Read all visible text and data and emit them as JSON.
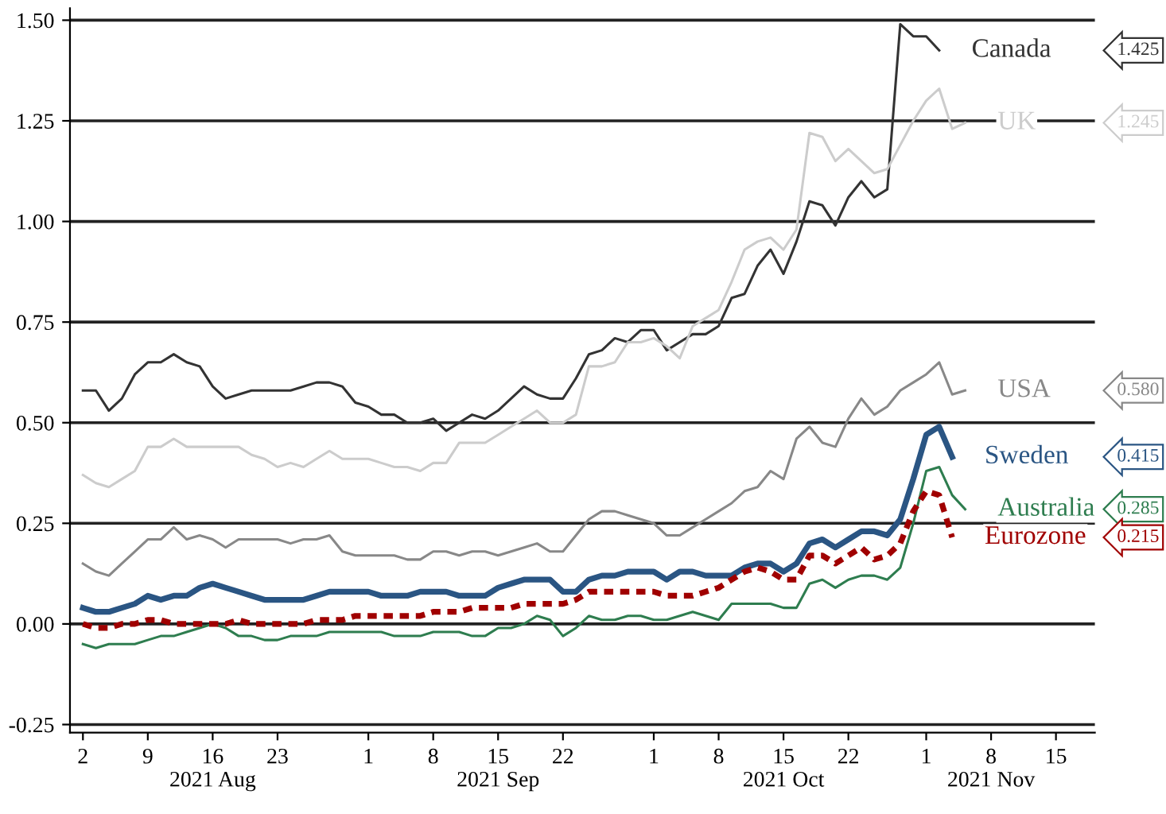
{
  "chart_data": {
    "type": "line",
    "categories": [
      "2",
      null,
      null,
      null,
      null,
      "9",
      null,
      null,
      null,
      null,
      "16\n2021 Aug",
      null,
      null,
      null,
      null,
      "23",
      null,
      null,
      null,
      null,
      null,
      null,
      "1",
      null,
      null,
      null,
      null,
      "8",
      null,
      null,
      null,
      null,
      "15\n2021 Sep",
      null,
      null,
      null,
      null,
      "22",
      null,
      null,
      null,
      null,
      null,
      null,
      "1",
      null,
      null,
      null,
      null,
      "8",
      null,
      null,
      null,
      null,
      "15\n2021 Oct",
      null,
      null,
      null,
      null,
      "22",
      null,
      null,
      null,
      null,
      null,
      "1",
      null,
      null,
      null,
      null,
      "8\n2021 Nov",
      null,
      null,
      null,
      null,
      "15",
      null,
      null,
      null
    ],
    "series": [
      {
        "name": "Canada",
        "color": "#333333",
        "line_style": "solid",
        "values": [
          0.58,
          0.58,
          0.53,
          0.56,
          0.62,
          0.65,
          0.65,
          0.67,
          0.65,
          0.64,
          0.59,
          0.56,
          0.57,
          0.58,
          0.58,
          0.58,
          0.58,
          0.59,
          0.6,
          0.6,
          0.59,
          0.55,
          0.54,
          0.52,
          0.52,
          0.5,
          0.5,
          0.51,
          0.48,
          0.5,
          0.52,
          0.51,
          0.53,
          0.56,
          0.59,
          0.57,
          0.56,
          0.56,
          0.61,
          0.67,
          0.68,
          0.71,
          0.7,
          0.73,
          0.73,
          0.68,
          0.7,
          0.72,
          0.72,
          0.74,
          0.81,
          0.82,
          0.89,
          0.93,
          0.87,
          0.95,
          1.05,
          1.04,
          0.99,
          1.06,
          1.1,
          1.06,
          1.08,
          1.49,
          1.46,
          1.46,
          1.425,
          null,
          null,
          null,
          null,
          null,
          null,
          null,
          null,
          null,
          null,
          null,
          null
        ]
      },
      {
        "name": "UK",
        "color": "#cccccc",
        "line_style": "solid",
        "values": [
          0.37,
          0.35,
          0.34,
          0.36,
          0.38,
          0.44,
          0.44,
          0.46,
          0.44,
          0.44,
          0.44,
          0.44,
          0.44,
          0.42,
          0.41,
          0.39,
          0.4,
          0.39,
          0.41,
          0.43,
          0.41,
          0.41,
          0.41,
          0.4,
          0.39,
          0.39,
          0.38,
          0.4,
          0.4,
          0.45,
          0.45,
          0.45,
          0.47,
          0.49,
          0.51,
          0.53,
          0.5,
          0.5,
          0.52,
          0.64,
          0.64,
          0.65,
          0.7,
          0.7,
          0.71,
          0.69,
          0.66,
          0.74,
          0.76,
          0.78,
          0.85,
          0.93,
          0.95,
          0.96,
          0.93,
          0.98,
          1.22,
          1.21,
          1.15,
          1.18,
          1.15,
          1.12,
          1.13,
          1.19,
          1.25,
          1.3,
          1.33,
          1.23,
          1.245,
          null,
          null,
          null,
          null,
          null,
          null,
          null,
          null,
          null,
          null
        ]
      },
      {
        "name": "USA",
        "color": "#888888",
        "line_style": "solid",
        "values": [
          0.15,
          0.13,
          0.12,
          0.15,
          0.18,
          0.21,
          0.21,
          0.24,
          0.21,
          0.22,
          0.21,
          0.19,
          0.21,
          0.21,
          0.21,
          0.21,
          0.2,
          0.21,
          0.21,
          0.22,
          0.18,
          0.17,
          0.17,
          0.17,
          0.17,
          0.16,
          0.16,
          0.18,
          0.18,
          0.17,
          0.18,
          0.18,
          0.17,
          0.18,
          0.19,
          0.2,
          0.18,
          0.18,
          0.22,
          0.26,
          0.28,
          0.28,
          0.27,
          0.26,
          0.25,
          0.22,
          0.22,
          0.24,
          0.26,
          0.28,
          0.3,
          0.33,
          0.34,
          0.38,
          0.36,
          0.46,
          0.49,
          0.45,
          0.44,
          0.51,
          0.56,
          0.52,
          0.54,
          0.58,
          0.6,
          0.62,
          0.65,
          0.57,
          0.58,
          null,
          null,
          null,
          null,
          null,
          null,
          null,
          null,
          null,
          null
        ]
      },
      {
        "name": "Sweden",
        "color": "#2a5583",
        "line_style": "solid",
        "values": [
          0.04,
          0.03,
          0.03,
          0.04,
          0.05,
          0.07,
          0.06,
          0.07,
          0.07,
          0.09,
          0.1,
          0.09,
          0.08,
          0.07,
          0.06,
          0.06,
          0.06,
          0.06,
          0.07,
          0.08,
          0.08,
          0.08,
          0.08,
          0.07,
          0.07,
          0.07,
          0.08,
          0.08,
          0.08,
          0.07,
          0.07,
          0.07,
          0.09,
          0.1,
          0.11,
          0.11,
          0.11,
          0.08,
          0.08,
          0.11,
          0.12,
          0.12,
          0.13,
          0.13,
          0.13,
          0.11,
          0.13,
          0.13,
          0.12,
          0.12,
          0.12,
          0.14,
          0.15,
          0.15,
          0.13,
          0.15,
          0.2,
          0.21,
          0.19,
          0.21,
          0.23,
          0.23,
          0.22,
          0.26,
          0.36,
          0.47,
          0.49,
          0.415,
          null,
          null,
          null,
          null,
          null,
          null,
          null,
          null,
          null,
          null,
          null
        ]
      },
      {
        "name": "Australia",
        "color": "#2e7d4f",
        "line_style": "solid",
        "values": [
          -0.05,
          -0.06,
          -0.05,
          -0.05,
          -0.05,
          -0.04,
          -0.03,
          -0.03,
          -0.02,
          -0.01,
          0.0,
          -0.01,
          -0.03,
          -0.03,
          -0.04,
          -0.04,
          -0.03,
          -0.03,
          -0.03,
          -0.02,
          -0.02,
          -0.02,
          -0.02,
          -0.02,
          -0.03,
          -0.03,
          -0.03,
          -0.02,
          -0.02,
          -0.02,
          -0.03,
          -0.03,
          -0.01,
          -0.01,
          0.0,
          0.02,
          0.01,
          -0.03,
          -0.01,
          0.02,
          0.01,
          0.01,
          0.02,
          0.02,
          0.01,
          0.01,
          0.02,
          0.03,
          0.02,
          0.01,
          0.05,
          0.05,
          0.05,
          0.05,
          0.04,
          0.04,
          0.1,
          0.11,
          0.09,
          0.11,
          0.12,
          0.12,
          0.11,
          0.14,
          0.25,
          0.38,
          0.39,
          0.32,
          0.285,
          null,
          null,
          null,
          null,
          null,
          null,
          null,
          null,
          null,
          null
        ]
      },
      {
        "name": "Eurozone",
        "color": "#a00000",
        "line_style": "dashed",
        "values": [
          0.0,
          -0.01,
          -0.01,
          0.0,
          0.0,
          0.01,
          0.01,
          0.0,
          0.0,
          0.0,
          0.0,
          0.0,
          0.01,
          0.0,
          0.0,
          0.0,
          0.0,
          0.0,
          0.01,
          0.01,
          0.01,
          0.02,
          0.02,
          0.02,
          0.02,
          0.02,
          0.02,
          0.03,
          0.03,
          0.03,
          0.04,
          0.04,
          0.04,
          0.04,
          0.05,
          0.05,
          0.05,
          0.05,
          0.06,
          0.08,
          0.08,
          0.08,
          0.08,
          0.08,
          0.08,
          0.07,
          0.07,
          0.07,
          0.08,
          0.09,
          0.11,
          0.13,
          0.14,
          0.13,
          0.11,
          0.11,
          0.17,
          0.17,
          0.15,
          0.17,
          0.19,
          0.16,
          0.17,
          0.2,
          0.28,
          0.33,
          0.32,
          0.215,
          null,
          null,
          null,
          null,
          null,
          null,
          null,
          null,
          null,
          null,
          null
        ]
      }
    ],
    "ylim": [
      -0.27,
      1.53
    ],
    "yticks": [
      {
        "value": -0.25,
        "label": "-0.25"
      },
      {
        "value": 0,
        "label": "0.00"
      },
      {
        "value": 0.25,
        "label": "0.25"
      },
      {
        "value": 0.5,
        "label": "0.50"
      },
      {
        "value": 0.75,
        "label": "0.75"
      },
      {
        "value": 1.0,
        "label": "1.00"
      },
      {
        "value": 1.25,
        "label": "1.25"
      },
      {
        "value": 1.5,
        "label": "1.50"
      }
    ],
    "grid": "y",
    "legend": "right",
    "annotations": [
      "1.425",
      "1.245",
      "0.580",
      "0.415",
      "0.285",
      "0.215"
    ]
  }
}
